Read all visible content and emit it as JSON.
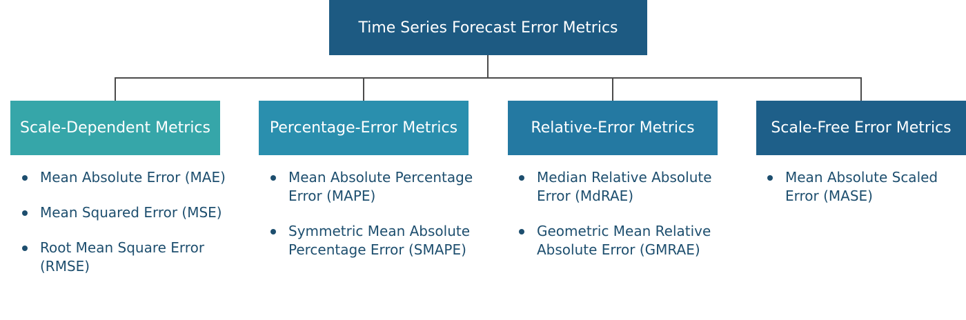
{
  "colors": {
    "root": "#1d5a82",
    "connector": "#4a4a4a",
    "text": "#1d4e6e",
    "bullet": "#1d4e6e"
  },
  "root": {
    "title": "Time Series Forecast Error Metrics"
  },
  "categories": [
    {
      "title": "Scale-Dependent Metrics",
      "color": "#36a6a9",
      "items": [
        "Mean Absolute Error (MAE)",
        "Mean Squared Error (MSE)",
        "Root Mean Square Error (RMSE)"
      ]
    },
    {
      "title": "Percentage-Error Metrics",
      "color": "#2a8fae",
      "items": [
        "Mean Absolute Percentage Error (MAPE)",
        "Symmetric Mean Absolute Percentage Error (SMAPE)"
      ]
    },
    {
      "title": "Relative-Error Metrics",
      "color": "#2479a2",
      "items": [
        "Median Relative Absolute Error (MdRAE)",
        "Geometric Mean Relative Absolute Error (GMRAE)"
      ]
    },
    {
      "title": "Scale-Free Error Metrics",
      "color": "#1e5f89",
      "items": [
        "Mean Absolute Scaled Error (MASE)"
      ]
    }
  ]
}
